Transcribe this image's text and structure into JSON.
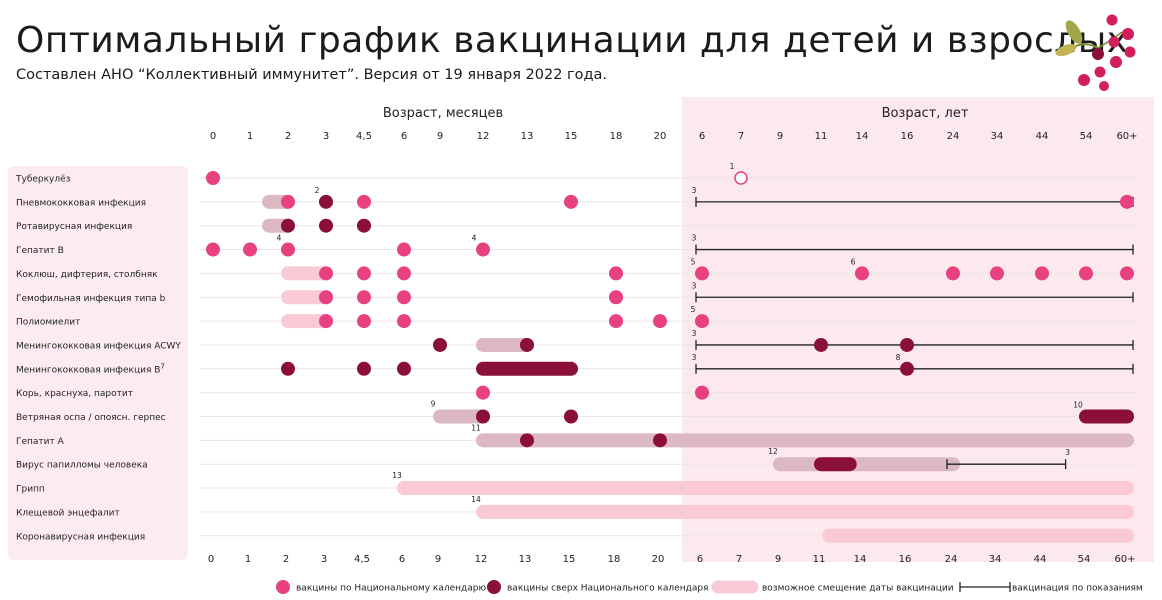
{
  "title": "Оптимальный график вакцинации для детей и взрослых",
  "subtitle": "Составлен АНО “Коллективный иммунитет”. Версия от 19 января 2022 года.",
  "colors": {
    "national": "#e8417f",
    "extra": "#8a1038",
    "shift_light": "#f9c9d6",
    "shift_dark": "#dcb8c2",
    "adult_bg": "#fce9ee",
    "label_bg": "#fcecf0"
  },
  "chart_data": {
    "type": "timeline",
    "axis_months_label": "Возраст, месяцев",
    "axis_years_label": "Возраст, лет",
    "ticks": [
      "0",
      "1",
      "2",
      "3",
      "4,5",
      "6",
      "9",
      "12",
      "13",
      "15",
      "18",
      "20",
      "6",
      "7",
      "9",
      "11",
      "14",
      "16",
      "24",
      "34",
      "44",
      "54",
      "60+"
    ],
    "rows": [
      {
        "name": "Туберкулёз",
        "sup": "",
        "dots": [
          {
            "t": 0,
            "k": "n"
          },
          {
            "t": 13,
            "k": "o",
            "note": "1"
          }
        ],
        "shifts": [],
        "bars": [],
        "lines": []
      },
      {
        "name": "Пневмококковая инфекция",
        "sup": "",
        "dots": [
          {
            "t": 2,
            "k": "n"
          },
          {
            "t": 3,
            "k": "e",
            "note": "2"
          },
          {
            "t": 4,
            "k": "n"
          },
          {
            "t": 9,
            "k": "n"
          },
          {
            "t": 22,
            "k": "n"
          }
        ],
        "shifts": [
          {
            "f": 1.5,
            "t": 2,
            "k": "d"
          }
        ],
        "bars": [],
        "lines": [
          {
            "f": 12,
            "t": 22,
            "note": "3"
          }
        ]
      },
      {
        "name": "Ротавирусная инфекция",
        "sup": "",
        "dots": [
          {
            "t": 2,
            "k": "e"
          },
          {
            "t": 3,
            "k": "e"
          },
          {
            "t": 4,
            "k": "e"
          }
        ],
        "shifts": [
          {
            "f": 1.5,
            "t": 2,
            "k": "d"
          }
        ],
        "bars": [],
        "lines": []
      },
      {
        "name": "Гепатит В",
        "sup": "",
        "dots": [
          {
            "t": 0,
            "k": "n"
          },
          {
            "t": 1,
            "k": "n"
          },
          {
            "t": 2,
            "k": "n",
            "note": "4"
          },
          {
            "t": 5,
            "k": "n"
          },
          {
            "t": 7,
            "k": "n",
            "note": "4"
          }
        ],
        "shifts": [],
        "bars": [],
        "lines": [
          {
            "f": 12,
            "t": 22,
            "note": "3"
          }
        ]
      },
      {
        "name": "Коклюш, дифтерия, столбняк",
        "sup": "",
        "dots": [
          {
            "t": 3,
            "k": "n"
          },
          {
            "t": 4,
            "k": "n"
          },
          {
            "t": 5,
            "k": "n"
          },
          {
            "t": 10,
            "k": "n"
          },
          {
            "t": 12,
            "k": "n",
            "note": "5"
          },
          {
            "t": 16,
            "k": "n",
            "note": "6"
          },
          {
            "t": 18,
            "k": "n"
          },
          {
            "t": 19,
            "k": "n"
          },
          {
            "t": 20,
            "k": "n"
          },
          {
            "t": 21,
            "k": "n"
          },
          {
            "t": 22,
            "k": "n"
          }
        ],
        "shifts": [
          {
            "f": 2,
            "t": 3,
            "k": "l"
          }
        ],
        "bars": [],
        "lines": []
      },
      {
        "name": "Гемофильная инфекция типа b",
        "sup": "",
        "dots": [
          {
            "t": 3,
            "k": "n"
          },
          {
            "t": 4,
            "k": "n"
          },
          {
            "t": 5,
            "k": "n"
          },
          {
            "t": 10,
            "k": "n"
          }
        ],
        "shifts": [
          {
            "f": 2,
            "t": 3,
            "k": "l"
          }
        ],
        "bars": [],
        "lines": [
          {
            "f": 12,
            "t": 22,
            "note": "3"
          }
        ]
      },
      {
        "name": "Полиомиелит",
        "sup": "",
        "dots": [
          {
            "t": 3,
            "k": "n"
          },
          {
            "t": 4,
            "k": "n"
          },
          {
            "t": 5,
            "k": "n"
          },
          {
            "t": 10,
            "k": "n"
          },
          {
            "t": 11,
            "k": "n"
          },
          {
            "t": 12,
            "k": "n",
            "note": "5"
          }
        ],
        "shifts": [
          {
            "f": 2,
            "t": 3,
            "k": "l"
          }
        ],
        "bars": [],
        "lines": []
      },
      {
        "name": "Менингококковая инфекция ACWY",
        "sup": "",
        "dots": [
          {
            "t": 6,
            "k": "e"
          },
          {
            "t": 8,
            "k": "e"
          },
          {
            "t": 15,
            "k": "e"
          },
          {
            "t": 17,
            "k": "e"
          }
        ],
        "shifts": [
          {
            "f": 7,
            "t": 8,
            "k": "d"
          }
        ],
        "bars": [],
        "lines": [
          {
            "f": 12,
            "t": 22,
            "note": "3"
          }
        ]
      },
      {
        "name": "Менингококковая инфекция В",
        "sup": "7",
        "dots": [
          {
            "t": 2,
            "k": "e"
          },
          {
            "t": 4,
            "k": "e"
          },
          {
            "t": 5,
            "k": "e"
          },
          {
            "t": 17,
            "k": "e",
            "note": "8"
          }
        ],
        "shifts": [],
        "bars": [
          {
            "f": 7,
            "t": 9,
            "k": "e"
          }
        ],
        "lines": [
          {
            "f": 12,
            "t": 22,
            "note": "3"
          }
        ]
      },
      {
        "name": "Корь, краснуха, паротит",
        "sup": "",
        "dots": [
          {
            "t": 7,
            "k": "n"
          },
          {
            "t": 12,
            "k": "n"
          }
        ],
        "shifts": [],
        "bars": [],
        "lines": []
      },
      {
        "name": "Ветряная оспа / опоясн. герпес",
        "sup": "",
        "dots": [
          {
            "t": 7,
            "k": "e"
          },
          {
            "t": 9,
            "k": "e"
          }
        ],
        "shifts": [
          {
            "f": 6,
            "t": 7,
            "k": "d",
            "note": "9"
          }
        ],
        "bars": [
          {
            "f": 21,
            "t": 22,
            "k": "e",
            "note": "10"
          }
        ],
        "lines": []
      },
      {
        "name": "Гепатит А",
        "sup": "",
        "dots": [
          {
            "t": 8,
            "k": "e"
          },
          {
            "t": 11,
            "k": "e"
          }
        ],
        "shifts": [
          {
            "f": 7,
            "t": 22,
            "k": "d",
            "note": "11"
          }
        ],
        "bars": [],
        "lines": []
      },
      {
        "name": "Вирус папилломы человека",
        "sup": "",
        "dots": [],
        "shifts": [
          {
            "f": 14,
            "t": 18,
            "k": "d",
            "note": "12"
          }
        ],
        "bars": [
          {
            "f": 15,
            "t": 15.7,
            "k": "e"
          }
        ],
        "lines": [
          {
            "f": 18,
            "t": 20.4,
            "note": "3"
          }
        ]
      },
      {
        "name": "Грипп",
        "sup": "",
        "dots": [],
        "shifts": [
          {
            "f": 5,
            "t": 22,
            "k": "l",
            "note": "13"
          }
        ],
        "bars": [],
        "lines": []
      },
      {
        "name": "Клещевой энцефалит",
        "sup": "",
        "dots": [],
        "shifts": [
          {
            "f": 7,
            "t": 22,
            "k": "l",
            "note": "14"
          }
        ],
        "bars": [],
        "lines": []
      },
      {
        "name": "Коронавирусная инфекция",
        "sup": "",
        "dots": [],
        "shifts": [
          {
            "f": 15.2,
            "t": 22,
            "k": "l"
          }
        ],
        "bars": [],
        "lines": []
      }
    ],
    "legend": [
      {
        "label": "вакцины по Национальному календарю",
        "kind": "national"
      },
      {
        "label": "вакцины сверх Национального календаря",
        "kind": "extra"
      },
      {
        "label": "возможное смещение даты вакцинации",
        "kind": "shift"
      },
      {
        "label": "вакцинация по показаниям",
        "kind": "line"
      }
    ]
  }
}
